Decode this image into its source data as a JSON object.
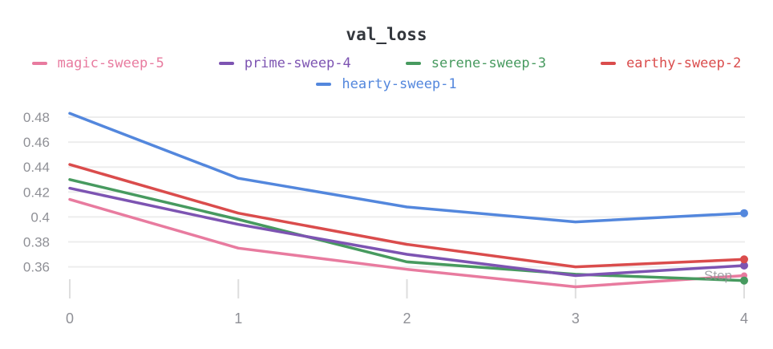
{
  "header": {
    "title": "val_loss"
  },
  "chart_data": {
    "type": "line",
    "title": "val_loss",
    "xlabel": "Step",
    "ylabel": "",
    "x": [
      0,
      1,
      2,
      3,
      4
    ],
    "series": [
      {
        "name": "magic-sweep-5",
        "color": "#E87B9F",
        "values": [
          0.414,
          0.375,
          0.358,
          0.344,
          0.353
        ]
      },
      {
        "name": "prime-sweep-4",
        "color": "#7D54B2",
        "values": [
          0.423,
          0.394,
          0.37,
          0.353,
          0.361
        ]
      },
      {
        "name": "serene-sweep-3",
        "color": "#479A5F",
        "values": [
          0.43,
          0.398,
          0.364,
          0.354,
          0.349
        ]
      },
      {
        "name": "earthy-sweep-2",
        "color": "#DA4C4C",
        "values": [
          0.442,
          0.403,
          0.378,
          0.36,
          0.366
        ]
      },
      {
        "name": "hearty-sweep-1",
        "color": "#5387DD",
        "values": [
          0.483,
          0.431,
          0.408,
          0.396,
          0.403
        ]
      }
    ],
    "yticks": [
      0.48,
      0.46,
      0.44,
      0.42,
      0.4,
      0.38,
      0.36
    ],
    "xticks": [
      0,
      1,
      2,
      3,
      4
    ],
    "ylim": [
      0.336,
      0.493
    ],
    "xlim": [
      0,
      4
    ],
    "grid": true,
    "legend_position": "top",
    "end_markers": true
  },
  "colors": {
    "title_text": "#33373d",
    "tick_text": "#8f9096",
    "gridline": "#ededed",
    "tick_mark": "#dedede",
    "step_label": "#8c8c8c",
    "background": "#ffffff"
  }
}
